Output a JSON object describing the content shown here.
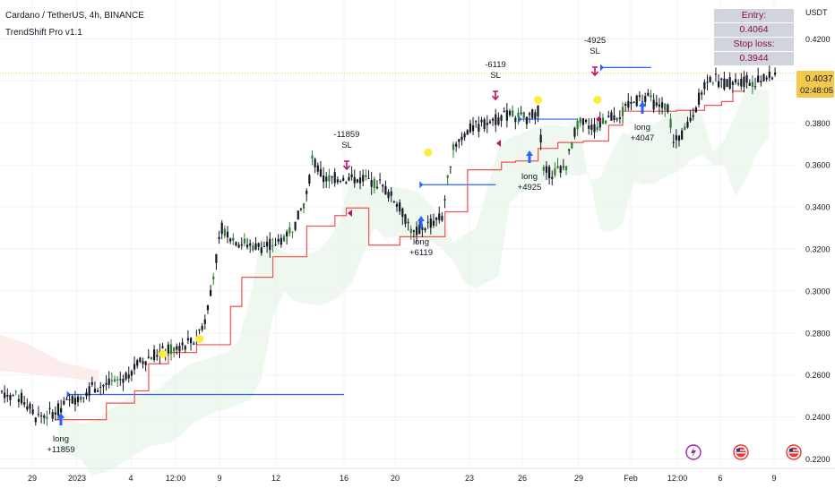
{
  "header": {
    "title": "Cardano / TetherUS, 4h, BINANCE",
    "indicator": "TrendShift Pro v1.1"
  },
  "info_table": {
    "entry_label": "Entry:",
    "entry_value": "0.4064",
    "stop_label": "Stop loss:",
    "stop_value": "0.3944"
  },
  "price_axis": {
    "currency": "USDT",
    "last_price": "0.4037",
    "countdown": "02:48:05"
  },
  "colors": {
    "bull": "#2e7d32",
    "bear": "#131722",
    "stop_line": "#ef5350",
    "entry_line": "#2962ff",
    "cloud": "#e8f5e9",
    "exit_marker": "#c51162",
    "bubble": "#ffeb3b",
    "price_tag": "#f2c94c"
  },
  "chart_data": {
    "type": "candlestick",
    "symbol": "ADAUSDT",
    "timeframe": "4h",
    "exchange": "BINANCE",
    "x_tick_labels": [
      "29",
      "2023",
      "4",
      "12:00",
      "9",
      "12",
      "16",
      "20",
      "23",
      "26",
      "29",
      "Feb",
      "12:00",
      "6",
      "9"
    ],
    "y_tick_labels": [
      "0.2200",
      "0.2400",
      "0.2600",
      "0.2800",
      "0.3000",
      "0.3200",
      "0.3400",
      "0.3600",
      "0.3800",
      "0.4000",
      "0.4200"
    ],
    "ylim": [
      0.22,
      0.425
    ],
    "last_price": 0.4037,
    "stop_line": [
      [
        0,
        0.2387
      ],
      [
        10,
        0.2387
      ],
      [
        18,
        0.2466
      ],
      [
        28,
        0.2524
      ],
      [
        33,
        0.2653
      ],
      [
        40,
        0.2707
      ],
      [
        50,
        0.2744
      ],
      [
        62,
        0.2926
      ],
      [
        66,
        0.3065
      ],
      [
        77,
        0.3163
      ],
      [
        89,
        0.3309
      ],
      [
        99,
        0.3359
      ],
      [
        103,
        0.3395
      ],
      [
        111,
        0.3218
      ],
      [
        122,
        0.3258
      ],
      [
        138,
        0.3377
      ],
      [
        146,
        0.3577
      ],
      [
        158,
        0.3613
      ],
      [
        163,
        0.3619
      ],
      [
        171,
        0.3679
      ],
      [
        178,
        0.3707
      ],
      [
        187,
        0.3714
      ],
      [
        196,
        0.3789
      ],
      [
        201,
        0.3856
      ],
      [
        220,
        0.386
      ],
      [
        230,
        0.3884
      ],
      [
        236,
        0.3902
      ],
      [
        240,
        0.3951
      ],
      [
        244,
        0.3951
      ]
    ],
    "entry_segments": [
      {
        "x1": 4,
        "x2": 123,
        "y": 0.2507
      },
      {
        "x1": 129,
        "x2": 156,
        "y": 0.3506
      },
      {
        "x1": 164,
        "x2": 185,
        "y": 0.3818
      },
      {
        "x1": 193,
        "x2": 211,
        "y": 0.4064
      }
    ],
    "trades": [
      {
        "entry_x": 5,
        "label": "long",
        "result": "+11859",
        "exit_x": 107,
        "exit_label": "SL",
        "pnl_label": "-11859"
      },
      {
        "entry_x": 130,
        "label": "long",
        "result": "+6119",
        "exit_x": 153,
        "exit_label": "SL",
        "pnl_label": "-6119"
      },
      {
        "entry_x": 164,
        "label": "long",
        "result": "+4925",
        "exit_x": 184,
        "exit_label": "SL",
        "pnl_label": "-4925"
      },
      {
        "entry_x": 200,
        "label": "long",
        "result": "+4047"
      }
    ],
    "bubbles": [
      {
        "x": 38,
        "y": 0.27
      },
      {
        "x": 51,
        "y": 0.2771
      },
      {
        "x": 132,
        "y": 0.3659
      },
      {
        "x": 171,
        "y": 0.391
      },
      {
        "x": 192,
        "y": 0.391
      }
    ]
  }
}
